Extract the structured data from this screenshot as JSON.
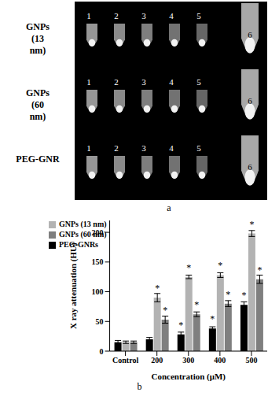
{
  "image_panel": {
    "label": "a",
    "rows": [
      {
        "label": "GNPs (13 nm)",
        "tubes": [
          "1",
          "2",
          "3",
          "4",
          "5",
          "6"
        ]
      },
      {
        "label": "GNPs (60 nm)",
        "tubes": [
          "1",
          "2",
          "3",
          "4",
          "5",
          "6"
        ]
      },
      {
        "label": "PEG-GNR",
        "tubes": [
          "1",
          "2",
          "3",
          "4",
          "5",
          "6"
        ]
      }
    ]
  },
  "chart_data": {
    "type": "bar",
    "title": "b",
    "x_label": "Concentration (μM)",
    "y_label": "X ray attenuation (HU)",
    "categories": [
      "Control",
      "200",
      "300",
      "400",
      "500"
    ],
    "series": [
      {
        "name": "PEG-GNRs",
        "color": "#000000",
        "values": [
          15,
          20,
          28,
          38,
          78
        ],
        "error": [
          3,
          3,
          4,
          3,
          5
        ],
        "annotations": [
          null,
          null,
          "*",
          "*",
          "*"
        ]
      },
      {
        "name": "GNPs (13 nm)",
        "color": "#b3b3b3",
        "values": [
          15,
          90,
          125,
          128,
          198
        ],
        "error": [
          2,
          7,
          3,
          4,
          5
        ],
        "annotations": [
          null,
          "*",
          "*",
          "*",
          "*"
        ]
      },
      {
        "name": "GNPs (60 nm)",
        "color": "#7f7f7f",
        "values": [
          15,
          53,
          62,
          80,
          121
        ],
        "error": [
          2,
          6,
          4,
          5,
          7
        ],
        "annotations": [
          null,
          "*",
          "*",
          "*",
          "*"
        ]
      }
    ],
    "ylim": [
      0,
      220
    ],
    "yticks": [
      0,
      50,
      100,
      150,
      200
    ],
    "grid": false,
    "legend": "upper left"
  }
}
